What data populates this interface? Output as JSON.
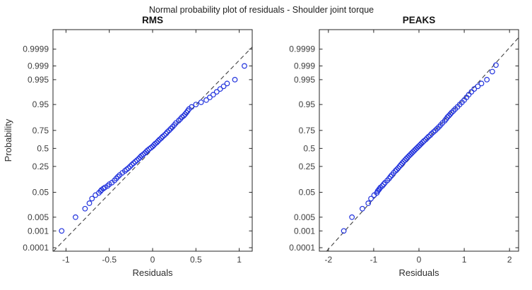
{
  "figure": {
    "title": "Normal probability plot of residuals - Shoulder joint torque",
    "colors": {
      "marker": "#2233dd",
      "ref_line": "#404040",
      "axis": "#262626",
      "tick_text": "#3d3d3d"
    }
  },
  "chart_data": [
    {
      "type": "scatter",
      "title": "RMS",
      "xlabel": "Residuals",
      "ylabel": "Probability",
      "y_scale": "normal-quantile",
      "xlim": [
        -1.15,
        1.15
      ],
      "xticks": [
        -1,
        -0.5,
        0,
        0.5,
        1
      ],
      "xtick_labels": [
        "-1",
        "-0.5",
        "0",
        "0.5",
        "1"
      ],
      "ytick_probabilities": [
        0.0001,
        0.001,
        0.005,
        0.05,
        0.25,
        0.5,
        0.75,
        0.95,
        0.995,
        0.999,
        0.9999
      ],
      "ytick_labels": [
        "0.0001",
        "0.001",
        "0.005",
        "0.05",
        "0.25",
        "0.5",
        "0.75",
        "0.95",
        "0.995",
        "0.999",
        "0.9999"
      ],
      "ref_line": {
        "style": "dashed",
        "mu": 0.01,
        "sigma": 0.3
      },
      "points": [
        [
          -1.05,
          0.001
        ],
        [
          -0.89,
          0.005
        ],
        [
          -0.78,
          0.012
        ],
        [
          -0.73,
          0.02
        ],
        [
          -0.7,
          0.03
        ],
        [
          -0.66,
          0.04
        ],
        [
          -0.62,
          0.048
        ],
        [
          -0.6,
          0.055
        ],
        [
          -0.59,
          0.06
        ],
        [
          -0.57,
          0.066
        ],
        [
          -0.55,
          0.072
        ],
        [
          -0.52,
          0.08
        ],
        [
          -0.5,
          0.09
        ],
        [
          -0.47,
          0.1
        ],
        [
          -0.44,
          0.115
        ],
        [
          -0.42,
          0.13
        ],
        [
          -0.4,
          0.145
        ],
        [
          -0.38,
          0.16
        ],
        [
          -0.35,
          0.18
        ],
        [
          -0.32,
          0.2
        ],
        [
          -0.3,
          0.215
        ],
        [
          -0.28,
          0.23
        ],
        [
          -0.26,
          0.25
        ],
        [
          -0.24,
          0.27
        ],
        [
          -0.22,
          0.29
        ],
        [
          -0.2,
          0.31
        ],
        [
          -0.18,
          0.33
        ],
        [
          -0.16,
          0.35
        ],
        [
          -0.145,
          0.37
        ],
        [
          -0.13,
          0.39
        ],
        [
          -0.11,
          0.41
        ],
        [
          -0.09,
          0.43
        ],
        [
          -0.075,
          0.45
        ],
        [
          -0.06,
          0.47
        ],
        [
          -0.04,
          0.49
        ],
        [
          -0.02,
          0.51
        ],
        [
          0.0,
          0.53
        ],
        [
          0.015,
          0.55
        ],
        [
          0.03,
          0.57
        ],
        [
          0.05,
          0.59
        ],
        [
          0.065,
          0.61
        ],
        [
          0.08,
          0.63
        ],
        [
          0.1,
          0.65
        ],
        [
          0.115,
          0.67
        ],
        [
          0.135,
          0.69
        ],
        [
          0.155,
          0.71
        ],
        [
          0.17,
          0.73
        ],
        [
          0.19,
          0.75
        ],
        [
          0.21,
          0.77
        ],
        [
          0.23,
          0.79
        ],
        [
          0.25,
          0.81
        ],
        [
          0.27,
          0.83
        ],
        [
          0.3,
          0.85
        ],
        [
          0.32,
          0.865
        ],
        [
          0.34,
          0.88
        ],
        [
          0.36,
          0.89
        ],
        [
          0.375,
          0.9
        ],
        [
          0.39,
          0.91
        ],
        [
          0.405,
          0.92
        ],
        [
          0.42,
          0.93
        ],
        [
          0.45,
          0.94
        ],
        [
          0.5,
          0.95
        ],
        [
          0.56,
          0.958
        ],
        [
          0.62,
          0.965
        ],
        [
          0.66,
          0.972
        ],
        [
          0.7,
          0.978
        ],
        [
          0.74,
          0.983
        ],
        [
          0.78,
          0.987
        ],
        [
          0.82,
          0.99
        ],
        [
          0.86,
          0.9925
        ],
        [
          0.95,
          0.995
        ],
        [
          1.06,
          0.999
        ]
      ]
    },
    {
      "type": "scatter",
      "title": "PEAKS",
      "xlabel": "Residuals",
      "ylabel": "Probability",
      "y_scale": "normal-quantile",
      "xlim": [
        -2.2,
        2.2
      ],
      "xticks": [
        -2,
        -1,
        0,
        1,
        2
      ],
      "xtick_labels": [
        "-2",
        "-1",
        "0",
        "1",
        "2"
      ],
      "ytick_probabilities": [
        0.0001,
        0.001,
        0.005,
        0.05,
        0.25,
        0.5,
        0.75,
        0.95,
        0.995,
        0.999,
        0.9999
      ],
      "ytick_labels": [
        "0.0001",
        "0.001",
        "0.005",
        "0.05",
        "0.25",
        "0.5",
        "0.75",
        "0.95",
        "0.995",
        "0.999",
        "0.9999"
      ],
      "ref_line": {
        "style": "dashed",
        "mu": 0.0,
        "sigma": 0.53
      },
      "points": [
        [
          -1.66,
          0.001
        ],
        [
          -1.48,
          0.005
        ],
        [
          -1.25,
          0.012
        ],
        [
          -1.12,
          0.02
        ],
        [
          -1.06,
          0.03
        ],
        [
          -0.99,
          0.04
        ],
        [
          -0.93,
          0.048
        ],
        [
          -0.91,
          0.055
        ],
        [
          -0.89,
          0.06
        ],
        [
          -0.87,
          0.066
        ],
        [
          -0.85,
          0.072
        ],
        [
          -0.81,
          0.08
        ],
        [
          -0.78,
          0.09
        ],
        [
          -0.75,
          0.1
        ],
        [
          -0.7,
          0.115
        ],
        [
          -0.66,
          0.13
        ],
        [
          -0.63,
          0.145
        ],
        [
          -0.6,
          0.16
        ],
        [
          -0.56,
          0.18
        ],
        [
          -0.52,
          0.2
        ],
        [
          -0.49,
          0.215
        ],
        [
          -0.46,
          0.23
        ],
        [
          -0.43,
          0.25
        ],
        [
          -0.4,
          0.27
        ],
        [
          -0.37,
          0.29
        ],
        [
          -0.34,
          0.31
        ],
        [
          -0.31,
          0.33
        ],
        [
          -0.28,
          0.35
        ],
        [
          -0.25,
          0.37
        ],
        [
          -0.22,
          0.39
        ],
        [
          -0.19,
          0.41
        ],
        [
          -0.16,
          0.43
        ],
        [
          -0.13,
          0.45
        ],
        [
          -0.1,
          0.47
        ],
        [
          -0.07,
          0.49
        ],
        [
          -0.04,
          0.51
        ],
        [
          -0.01,
          0.53
        ],
        [
          0.02,
          0.55
        ],
        [
          0.05,
          0.57
        ],
        [
          0.08,
          0.59
        ],
        [
          0.11,
          0.61
        ],
        [
          0.15,
          0.63
        ],
        [
          0.18,
          0.65
        ],
        [
          0.21,
          0.67
        ],
        [
          0.25,
          0.69
        ],
        [
          0.28,
          0.71
        ],
        [
          0.32,
          0.73
        ],
        [
          0.36,
          0.75
        ],
        [
          0.4,
          0.77
        ],
        [
          0.44,
          0.79
        ],
        [
          0.48,
          0.81
        ],
        [
          0.52,
          0.83
        ],
        [
          0.57,
          0.85
        ],
        [
          0.6,
          0.865
        ],
        [
          0.63,
          0.88
        ],
        [
          0.66,
          0.89
        ],
        [
          0.69,
          0.9
        ],
        [
          0.72,
          0.91
        ],
        [
          0.76,
          0.92
        ],
        [
          0.8,
          0.93
        ],
        [
          0.85,
          0.94
        ],
        [
          0.9,
          0.95
        ],
        [
          0.95,
          0.958
        ],
        [
          1.0,
          0.965
        ],
        [
          1.05,
          0.972
        ],
        [
          1.1,
          0.978
        ],
        [
          1.16,
          0.983
        ],
        [
          1.22,
          0.987
        ],
        [
          1.3,
          0.99
        ],
        [
          1.38,
          0.9925
        ],
        [
          1.5,
          0.995
        ],
        [
          1.62,
          0.998
        ],
        [
          1.7,
          0.9991
        ]
      ]
    }
  ]
}
